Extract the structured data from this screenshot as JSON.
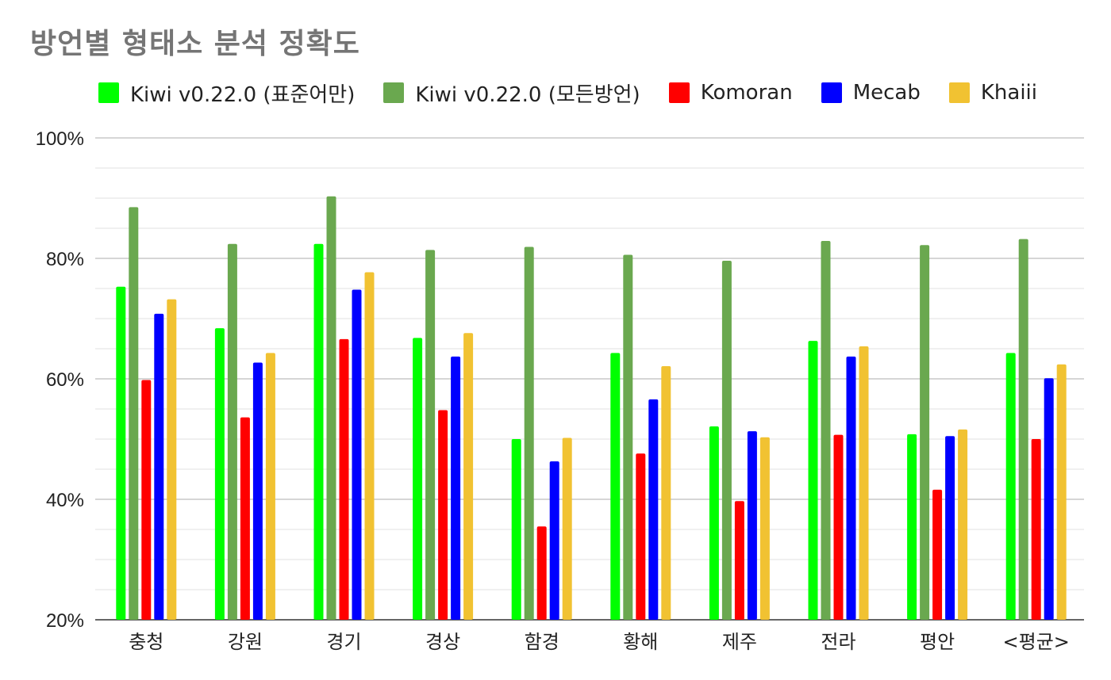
{
  "chart_data": {
    "type": "bar",
    "title": "방언별 형태소 분석 정확도",
    "categories": [
      "충청",
      "강원",
      "경기",
      "경상",
      "함경",
      "황해",
      "제주",
      "전라",
      "평안",
      "<평균>"
    ],
    "series": [
      {
        "name": "Kiwi v0.22.0 (표준어만)",
        "color": "#00ff00",
        "values": [
          75.3,
          68.4,
          82.4,
          66.8,
          50.0,
          64.3,
          52.1,
          66.3,
          50.8,
          64.3
        ]
      },
      {
        "name": "Kiwi v0.22.0 (모든방언)",
        "color": "#6aa84f",
        "values": [
          88.5,
          82.4,
          90.3,
          81.4,
          81.9,
          80.6,
          79.6,
          82.9,
          82.2,
          83.2
        ]
      },
      {
        "name": "Komoran",
        "color": "#ff0000",
        "values": [
          59.8,
          53.6,
          66.6,
          54.8,
          35.5,
          47.6,
          39.7,
          50.7,
          41.6,
          50.0
        ]
      },
      {
        "name": "Mecab",
        "color": "#0000ff",
        "values": [
          70.8,
          62.7,
          74.8,
          63.7,
          46.3,
          56.6,
          51.3,
          63.7,
          50.5,
          60.1
        ]
      },
      {
        "name": "Khaiii",
        "color": "#f1c232",
        "values": [
          73.2,
          64.3,
          77.7,
          67.6,
          50.2,
          62.1,
          50.3,
          65.4,
          51.6,
          62.4
        ]
      }
    ],
    "ylim": [
      20,
      100
    ],
    "yticks": [
      "20%",
      "40%",
      "60%",
      "80%",
      "100%"
    ],
    "ytick_values": [
      20,
      40,
      60,
      80,
      100
    ],
    "minor_grid_step": 5,
    "grid": true,
    "legend_position": "top"
  }
}
